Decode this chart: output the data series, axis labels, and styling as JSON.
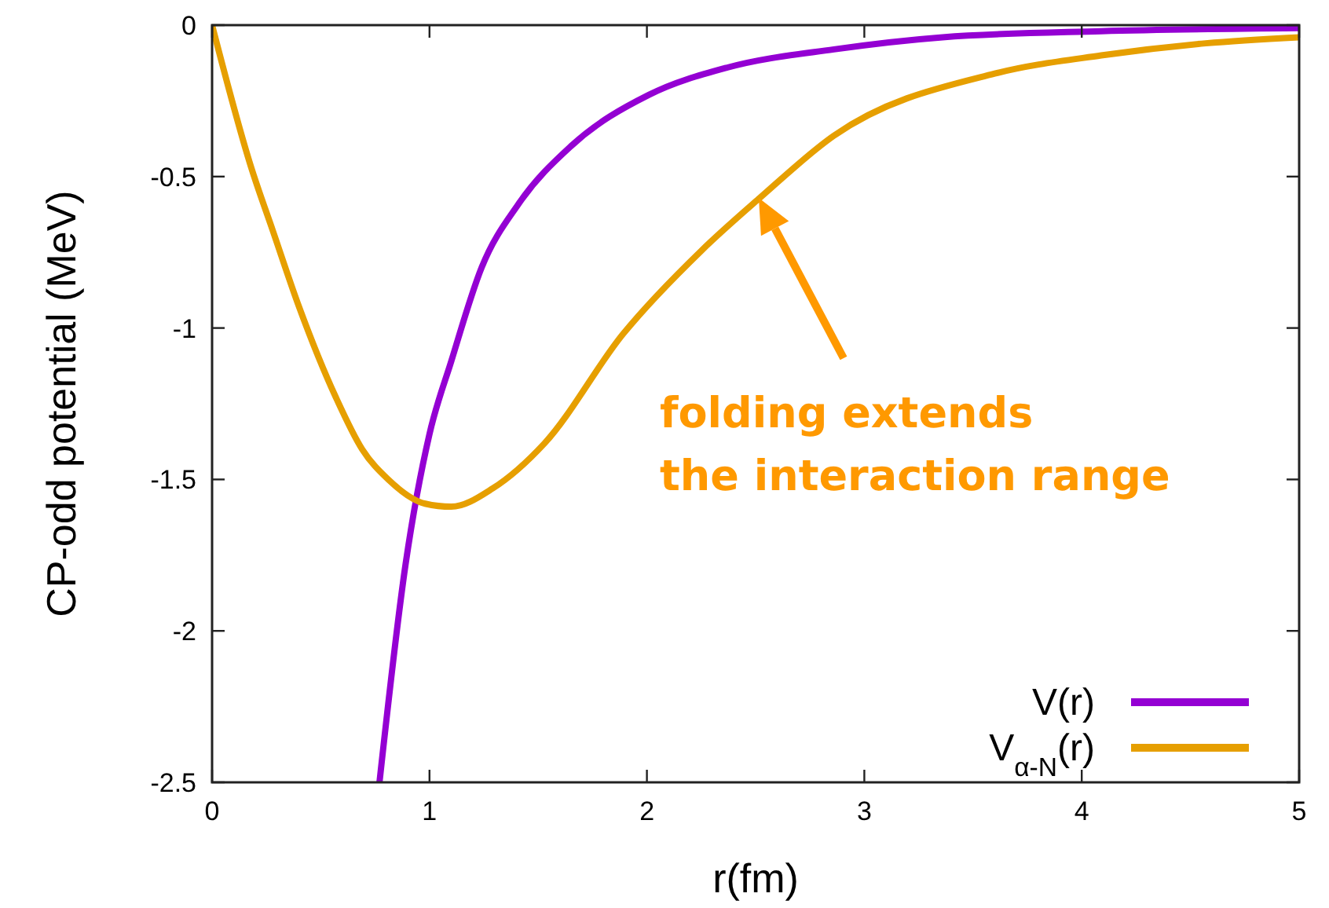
{
  "chart_data": {
    "type": "line",
    "xlabel": "r(fm)",
    "ylabel": "CP-odd potential (MeV)",
    "xlim": [
      0,
      5
    ],
    "xticks": [
      0,
      1,
      2,
      3,
      4,
      5
    ],
    "ylim": [
      -2.5,
      0
    ],
    "yticks": [
      0,
      -0.5,
      -1,
      -1.5,
      -2,
      -2.5
    ],
    "grid": false,
    "legend": "bottom right",
    "marker": "none",
    "line_style": "solid",
    "series": [
      {
        "name": "V(r)",
        "color": "#9400d3",
        "x": [
          0.77,
          0.89,
          1.0,
          1.1,
          1.24,
          1.41,
          1.65,
          2.01,
          2.37,
          2.86,
          3.36,
          4.09,
          5.0
        ],
        "values": [
          -2.5,
          -1.78,
          -1.35,
          -1.11,
          -0.8,
          -0.59,
          -0.4,
          -0.23,
          -0.14,
          -0.08,
          -0.04,
          -0.02,
          -0.01
        ]
      },
      {
        "name": "V$_{α-N}$(r)",
        "color": "#e69f00",
        "x": [
          0,
          0.18,
          0.28,
          0.4,
          0.57,
          0.69,
          0.81,
          0.98,
          1.1,
          1.29,
          1.53,
          1.89,
          2.25,
          2.52,
          2.86,
          3.6,
          4.09,
          4.57,
          5.0
        ],
        "values": [
          0,
          -0.47,
          -0.68,
          -0.93,
          -1.23,
          -1.4,
          -1.5,
          -1.58,
          -1.59,
          -1.53,
          -1.38,
          -1.02,
          -0.745,
          -0.57,
          -0.365,
          -0.16,
          -0.1,
          -0.06,
          -0.04
        ]
      }
    ],
    "annotations": [
      "folding extends\nthe interaction range"
    ]
  }
}
